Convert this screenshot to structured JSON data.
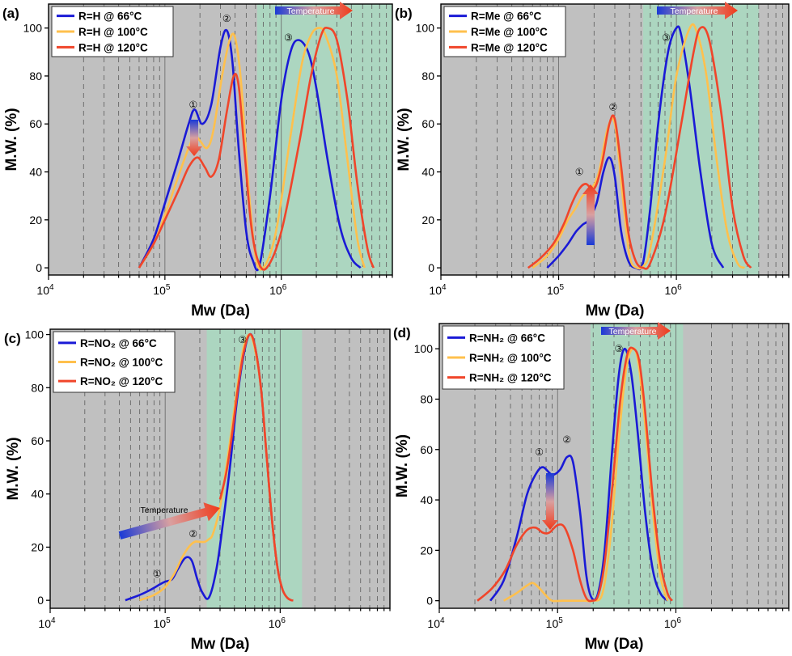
{
  "colors": {
    "series_66": "#1a1ad6",
    "series_100": "#ffc04d",
    "series_120": "#f0452a",
    "plot_bg": "#c0c0c0",
    "shade": "#a8d9c0",
    "vgrid": "#666666"
  },
  "chart_data": [
    {
      "panel": "(a)",
      "type": "line",
      "xlabel": "Mw (Da)",
      "ylabel": "M.W. (%)",
      "xscale": "log",
      "xlim": [
        10000,
        9000000
      ],
      "ylim": [
        -3,
        110
      ],
      "xticks": [
        {
          "value": 10000,
          "base": "10",
          "exp": "4"
        },
        {
          "value": 100000,
          "base": "10",
          "exp": "5"
        },
        {
          "value": 1000000,
          "base": "10",
          "exp": "6"
        }
      ],
      "yticks": [
        0,
        20,
        40,
        60,
        80,
        100
      ],
      "legend_position": "top-left",
      "shade_range": [
        620000,
        9000000
      ],
      "arrow_label": "Temperature",
      "series": [
        {
          "name": "R=H @ 66°C",
          "color": "#1a1ad6",
          "x": [
            60000,
            80000,
            100000,
            130000,
            160000,
            180000,
            210000,
            250000,
            300000,
            340000,
            380000,
            430000,
            500000,
            570000,
            650000,
            800000,
            1000000,
            1200000,
            1400000,
            1700000,
            2000000,
            2500000,
            3200000,
            4000000,
            4800000
          ],
          "y": [
            0,
            12,
            27,
            45,
            60,
            66,
            60,
            68,
            92,
            99,
            86,
            50,
            15,
            3,
            1,
            30,
            70,
            90,
            95,
            90,
            75,
            45,
            17,
            4,
            0
          ]
        },
        {
          "name": "R=H @ 100°C",
          "color": "#ffc04d",
          "x": [
            60000,
            80000,
            100000,
            130000,
            160000,
            180000,
            200000,
            230000,
            260000,
            310000,
            360000,
            400000,
            450000,
            520000,
            600000,
            700000,
            900000,
            1200000,
            1500000,
            1800000,
            2100000,
            2400000,
            3000000,
            3700000,
            4500000,
            5200000
          ],
          "y": [
            0,
            10,
            22,
            38,
            50,
            55,
            53,
            50,
            57,
            80,
            95,
            96,
            78,
            35,
            5,
            0,
            15,
            55,
            85,
            97,
            100,
            97,
            80,
            45,
            12,
            0
          ]
        },
        {
          "name": "R=H @ 120°C",
          "color": "#f0452a",
          "x": [
            60000,
            80000,
            100000,
            130000,
            160000,
            190000,
            220000,
            250000,
            290000,
            340000,
            390000,
            430000,
            480000,
            550000,
            630000,
            750000,
            1000000,
            1400000,
            1800000,
            2200000,
            2500000,
            3000000,
            3700000,
            4500000,
            5500000,
            6200000
          ],
          "y": [
            0,
            10,
            20,
            32,
            42,
            46,
            42,
            38,
            45,
            65,
            80,
            76,
            50,
            18,
            3,
            0,
            15,
            50,
            80,
            97,
            100,
            95,
            70,
            35,
            8,
            0
          ]
        }
      ],
      "annotations": [
        {
          "label": "①",
          "x": 175000,
          "y": 68
        },
        {
          "label": "②",
          "x": 340000,
          "y": 104
        },
        {
          "label": "③",
          "x": 1150000,
          "y": 96
        }
      ]
    },
    {
      "panel": "(b)",
      "type": "line",
      "xlabel": "Mw (Da)",
      "ylabel": "M.W. (%)",
      "xscale": "log",
      "xlim": [
        10000,
        9000000
      ],
      "ylim": [
        -3,
        110
      ],
      "xticks": [
        {
          "value": 10000,
          "base": "10",
          "exp": "4"
        },
        {
          "value": 100000,
          "base": "10",
          "exp": "5"
        },
        {
          "value": 1000000,
          "base": "10",
          "exp": "6"
        }
      ],
      "yticks": [
        0,
        20,
        40,
        60,
        80,
        100
      ],
      "legend_position": "top-left",
      "shade_range": [
        520000,
        5000000
      ],
      "arrow_label": "Temperature",
      "series": [
        {
          "name": "R=Me @ 66°C",
          "color": "#1a1ad6",
          "x": [
            80000,
            100000,
            120000,
            140000,
            160000,
            180000,
            210000,
            240000,
            270000,
            300000,
            340000,
            390000,
            450000,
            520000,
            600000,
            700000,
            850000,
            1000000,
            1100000,
            1300000,
            1600000,
            2000000,
            2500000
          ],
          "y": [
            0,
            5,
            10,
            15,
            18,
            20,
            27,
            40,
            46,
            38,
            15,
            3,
            0,
            2,
            25,
            60,
            90,
            100,
            97,
            75,
            40,
            10,
            0
          ]
        },
        {
          "name": "R=Me @ 100°C",
          "color": "#ffc04d",
          "x": [
            60000,
            80000,
            100000,
            120000,
            140000,
            160000,
            190000,
            220000,
            260000,
            300000,
            350000,
            400000,
            460000,
            530000,
            600000,
            800000,
            1000000,
            1300000,
            1500000,
            1800000,
            2200000,
            2700000,
            3300000,
            3800000
          ],
          "y": [
            0,
            5,
            12,
            20,
            25,
            30,
            33,
            40,
            58,
            60,
            30,
            5,
            0,
            1,
            8,
            45,
            80,
            100,
            98,
            80,
            45,
            15,
            2,
            0
          ]
        },
        {
          "name": "R=Me @ 120°C",
          "color": "#f0452a",
          "x": [
            55000,
            70000,
            90000,
            110000,
            130000,
            150000,
            170000,
            200000,
            230000,
            270000,
            300000,
            340000,
            390000,
            450000,
            520000,
            600000,
            800000,
            1100000,
            1400000,
            1600000,
            1900000,
            2400000,
            3000000,
            3700000,
            4300000
          ],
          "y": [
            0,
            4,
            10,
            18,
            27,
            33,
            35,
            33,
            42,
            60,
            62,
            42,
            15,
            3,
            0,
            2,
            22,
            60,
            90,
            100,
            95,
            65,
            25,
            5,
            0
          ]
        }
      ],
      "annotations": [
        {
          "label": "①",
          "x": 150000,
          "y": 40
        },
        {
          "label": "②",
          "x": 290000,
          "y": 67
        },
        {
          "label": "③",
          "x": 820000,
          "y": 96
        }
      ]
    },
    {
      "panel": "(c)",
      "type": "line",
      "xlabel": "Mw (Da)",
      "ylabel": "M.W. (%)",
      "xscale": "log",
      "xlim": [
        10000,
        9000000
      ],
      "ylim": [
        -3,
        102
      ],
      "xticks": [
        {
          "value": 10000,
          "base": "10",
          "exp": "4"
        },
        {
          "value": 100000,
          "base": "10",
          "exp": "5"
        },
        {
          "value": 1000000,
          "base": "10",
          "exp": "6"
        }
      ],
      "yticks": [
        0,
        20,
        40,
        60,
        80,
        100
      ],
      "legend_position": "top-left",
      "shade_range": [
        230000,
        1550000
      ],
      "arrow_label": "Temperature",
      "series": [
        {
          "name": "R=NO₂ @ 66°C",
          "color": "#1a1ad6",
          "x": [
            45000,
            60000,
            75000,
            90000,
            100000,
            115000,
            130000,
            150000,
            170000,
            190000,
            210000,
            240000,
            280000,
            320000,
            370000,
            420000,
            480000,
            540000,
            600000,
            680000,
            760000,
            850000,
            950000,
            1050000,
            1150000,
            1250000
          ],
          "y": [
            0,
            2,
            4,
            6,
            7,
            8,
            12,
            16,
            15,
            8,
            3,
            1,
            12,
            30,
            52,
            75,
            92,
            100,
            96,
            80,
            55,
            30,
            12,
            4,
            1,
            0
          ]
        },
        {
          "name": "R=NO₂ @ 100°C",
          "color": "#ffc04d",
          "x": [
            60000,
            80000,
            100000,
            120000,
            140000,
            160000,
            180000,
            200000,
            220000,
            240000,
            260000,
            300000,
            340000,
            380000,
            430000,
            480000,
            540000,
            600000,
            680000,
            760000,
            850000,
            950000,
            1050000,
            1150000,
            1250000
          ],
          "y": [
            0,
            2,
            5,
            10,
            16,
            20,
            22,
            22,
            22,
            23,
            25,
            35,
            50,
            65,
            82,
            95,
            100,
            95,
            80,
            55,
            30,
            12,
            4,
            1,
            0
          ]
        },
        {
          "name": "R=NO₂ @ 120°C",
          "color": "#f0452a",
          "x": [
            300000,
            340000,
            380000,
            430000,
            480000,
            540000,
            600000,
            680000,
            760000,
            850000,
            950000,
            1050000,
            1150000,
            1250000,
            1300000
          ],
          "y": [
            38,
            48,
            62,
            80,
            93,
            100,
            96,
            80,
            55,
            30,
            12,
            4,
            1,
            0,
            0
          ]
        }
      ],
      "annotations": [
        {
          "label": "①",
          "x": 85000,
          "y": 10
        },
        {
          "label": "②",
          "x": 175000,
          "y": 25
        },
        {
          "label": "③",
          "x": 470000,
          "y": 98
        }
      ]
    },
    {
      "panel": "(d)",
      "type": "line",
      "xlabel": "Mw (Da)",
      "ylabel": "M.W. (%)",
      "xscale": "log",
      "xlim": [
        10000,
        9000000
      ],
      "ylim": [
        -3,
        110
      ],
      "xticks": [
        {
          "value": 10000,
          "base": "10",
          "exp": "4"
        },
        {
          "value": 100000,
          "base": "10",
          "exp": "5"
        },
        {
          "value": 1000000,
          "base": "10",
          "exp": "6"
        }
      ],
      "yticks": [
        0,
        20,
        40,
        60,
        80,
        100
      ],
      "legend_position": "top-left",
      "shade_range": [
        190000,
        1150000
      ],
      "arrow_label": "Temperature",
      "series": [
        {
          "name": "R=NH₂ @ 66°C",
          "color": "#1a1ad6",
          "x": [
            27000,
            35000,
            45000,
            55000,
            65000,
            75000,
            90000,
            105000,
            120000,
            135000,
            155000,
            175000,
            195000,
            220000,
            250000,
            290000,
            330000,
            370000,
            420000,
            480000,
            550000,
            640000,
            740000,
            850000
          ],
          "y": [
            0,
            8,
            25,
            42,
            50,
            53,
            50,
            52,
            57,
            55,
            35,
            10,
            1,
            3,
            20,
            60,
            90,
            100,
            90,
            65,
            35,
            12,
            3,
            0
          ]
        },
        {
          "name": "R=NH₂ @ 100°C",
          "color": "#ffc04d",
          "x": [
            35000,
            45000,
            55000,
            62000,
            70000,
            80000,
            90000,
            110000,
            140000,
            170000,
            200000,
            240000,
            280000,
            330000,
            380000,
            430000,
            480000,
            550000,
            640000,
            740000,
            850000
          ],
          "y": [
            0,
            3,
            6,
            7,
            5,
            2,
            0,
            0,
            0,
            0,
            0,
            3,
            25,
            65,
            92,
            100,
            95,
            70,
            35,
            10,
            0
          ]
        },
        {
          "name": "R=NH₂ @ 120°C",
          "color": "#f0452a",
          "x": [
            21000,
            28000,
            36000,
            45000,
            55000,
            65000,
            75000,
            85000,
            100000,
            115000,
            135000,
            155000,
            175000,
            195000,
            220000,
            250000,
            290000,
            340000,
            390000,
            440000,
            490000,
            550000,
            640000,
            740000,
            850000,
            930000
          ],
          "y": [
            0,
            5,
            12,
            22,
            28,
            29,
            27,
            27,
            30,
            29,
            20,
            8,
            1,
            0,
            2,
            15,
            45,
            80,
            98,
            100,
            95,
            75,
            40,
            15,
            3,
            0
          ]
        }
      ],
      "annotations": [
        {
          "label": "①",
          "x": 70000,
          "y": 59
        },
        {
          "label": "②",
          "x": 120000,
          "y": 64
        },
        {
          "label": "③",
          "x": 330000,
          "y": 100
        }
      ]
    }
  ]
}
